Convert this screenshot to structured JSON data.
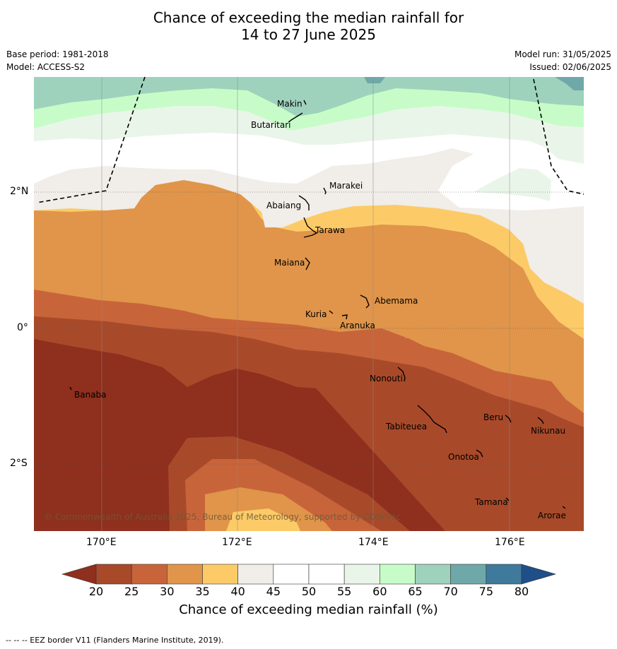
{
  "title_line1": "Chance of exceeding the median rainfall for",
  "title_line2": "14 to 27 June 2025",
  "base_period": "Base period: 1981-2018",
  "model": "Model: ACCESS-S2",
  "model_run": "Model run: 31/05/2025",
  "issued": "Issued: 02/06/2025",
  "copyright": "© Commonwealth of Australia 2025, Bureau of Meteorology, supported by COSPPac",
  "longitude_labels": [
    "170°E",
    "172°E",
    "174°E",
    "176°E"
  ],
  "latitude_labels": [
    "2°N",
    "0°",
    "2°S"
  ],
  "islands": [
    "Makin",
    "Butaritari",
    "Marakei",
    "Abaiang",
    "Tarawa",
    "Maiana",
    "Abemama",
    "Kuria",
    "Aranuka",
    "Nonouti",
    "Banaba",
    "Beru",
    "Tabiteuea",
    "Nikunau",
    "Onotoa",
    "Tamana",
    "Arorae"
  ],
  "colorbar": {
    "ticks": [
      "20",
      "25",
      "30",
      "35",
      "40",
      "45",
      "50",
      "55",
      "60",
      "65",
      "70",
      "75",
      "80"
    ],
    "colors": [
      "#a84a2a",
      "#c8643a",
      "#e0954a",
      "#fccb68",
      "#f1ede8",
      "#ffffff",
      "#ffffff",
      "#eaf5ea",
      "#c7fcc8",
      "#9ed2bc",
      "#6fa8a8",
      "#3f7a9c"
    ],
    "under_color": "#8f2f1e",
    "over_color": "#1f4f88",
    "title": "Chance of exceeding median rainfall (%)"
  },
  "footnote": "--  --  -- EEZ border V11 (Flanders Marine Institute, 2019)."
}
